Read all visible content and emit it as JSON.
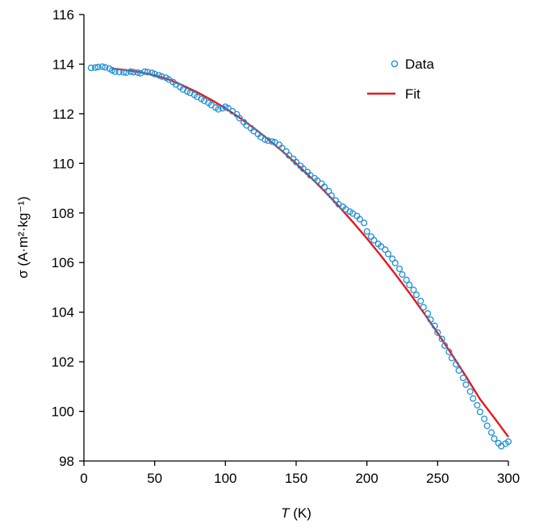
{
  "chart_data": {
    "type": "scatter",
    "xlabel": "T (K)",
    "xlabel_italic": "T",
    "xlabel_rest": " (K)",
    "ylabel": "σ (A·m²·kg⁻¹)",
    "xlim": [
      0,
      300
    ],
    "ylim": [
      98,
      116
    ],
    "xticks": [
      "0",
      "50",
      "100",
      "150",
      "200",
      "250",
      "300"
    ],
    "yticks": [
      "98",
      "100",
      "102",
      "104",
      "106",
      "108",
      "110",
      "112",
      "114",
      "116"
    ],
    "grid": false,
    "legend_position": "top-right",
    "series": [
      {
        "name": "Data",
        "kind": "scatter",
        "marker": "open-circle",
        "color": "#1f8fd6",
        "x": [
          5,
          8,
          10,
          13,
          15,
          18,
          20,
          22,
          25,
          28,
          30,
          33,
          35,
          38,
          40,
          43,
          45,
          48,
          50,
          53,
          55,
          58,
          60,
          63,
          65,
          68,
          70,
          73,
          75,
          78,
          80,
          83,
          85,
          88,
          90,
          93,
          95,
          98,
          100,
          102,
          105,
          108,
          110,
          113,
          115,
          118,
          120,
          123,
          125,
          128,
          130,
          133,
          135,
          138,
          140,
          143,
          145,
          148,
          150,
          153,
          155,
          158,
          160,
          163,
          165,
          168,
          170,
          173,
          175,
          178,
          180,
          183,
          185,
          188,
          190,
          193,
          195,
          198,
          200,
          203,
          205,
          208,
          210,
          213,
          215,
          218,
          220,
          223,
          225,
          228,
          230,
          233,
          235,
          238,
          240,
          243,
          245,
          248,
          250,
          253,
          255,
          258,
          260,
          263,
          265,
          268,
          270,
          273,
          275,
          278,
          280,
          283,
          285,
          288,
          290,
          293,
          295,
          298,
          300
        ],
        "y": [
          113.85,
          113.86,
          113.88,
          113.9,
          113.87,
          113.82,
          113.75,
          113.7,
          113.68,
          113.67,
          113.66,
          113.7,
          113.68,
          113.66,
          113.63,
          113.7,
          113.68,
          113.65,
          113.6,
          113.55,
          113.5,
          113.45,
          113.38,
          113.28,
          113.18,
          113.08,
          112.98,
          112.9,
          112.84,
          112.76,
          112.68,
          112.6,
          112.52,
          112.44,
          112.35,
          112.25,
          112.18,
          112.22,
          112.28,
          112.22,
          112.1,
          111.98,
          111.82,
          111.66,
          111.53,
          111.42,
          111.3,
          111.18,
          111.06,
          110.96,
          110.92,
          110.88,
          110.85,
          110.75,
          110.62,
          110.48,
          110.32,
          110.18,
          110.05,
          109.9,
          109.78,
          109.65,
          109.52,
          109.4,
          109.3,
          109.18,
          109.05,
          108.88,
          108.7,
          108.5,
          108.35,
          108.25,
          108.15,
          108.05,
          107.98,
          107.88,
          107.75,
          107.6,
          107.25,
          107.05,
          106.9,
          106.75,
          106.65,
          106.52,
          106.35,
          106.15,
          105.98,
          105.75,
          105.52,
          105.3,
          105.1,
          104.9,
          104.7,
          104.45,
          104.2,
          103.95,
          103.7,
          103.45,
          103.18,
          102.92,
          102.65,
          102.4,
          102.15,
          101.9,
          101.65,
          101.35,
          101.08,
          100.8,
          100.52,
          100.25,
          99.98,
          99.7,
          99.42,
          99.15,
          98.9,
          98.72,
          98.6,
          98.7,
          98.78
        ]
      },
      {
        "name": "Fit",
        "kind": "line",
        "color": "#e41a1c",
        "x": [
          20,
          30,
          40,
          50,
          60,
          70,
          80,
          90,
          100,
          110,
          120,
          130,
          140,
          150,
          160,
          170,
          180,
          190,
          200,
          210,
          220,
          230,
          240,
          250,
          260,
          270,
          280,
          290,
          300
        ],
        "y": [
          113.82,
          113.76,
          113.67,
          113.55,
          113.38,
          113.14,
          112.87,
          112.56,
          112.22,
          111.84,
          111.43,
          110.98,
          110.5,
          109.99,
          109.45,
          108.88,
          108.28,
          107.64,
          106.97,
          106.27,
          105.54,
          104.78,
          103.99,
          103.16,
          102.3,
          101.41,
          100.49,
          99.74,
          98.97
        ]
      }
    ]
  }
}
